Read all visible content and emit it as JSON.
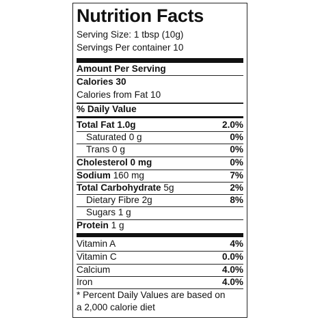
{
  "header": {
    "title": "Nutrition Facts",
    "serving_size": "Serving Size: 1 tbsp (10g)",
    "servings_per_container": "Servings Per container 10"
  },
  "amount_per_serving": "Amount Per Serving",
  "calories": "Calories 30",
  "calories_from_fat": "Calories from Fat 10",
  "daily_value_header": "% Daily Value",
  "nutrients": [
    {
      "name": "Total Fat 1.0g",
      "percent": "2.0%"
    },
    {
      "name": "Saturated 0 g",
      "percent": "0%"
    },
    {
      "name": "Trans 0 g",
      "percent": "0%"
    },
    {
      "name": "Cholesterol 0 mg",
      "percent": "0%"
    },
    {
      "name": "Sodium",
      "amount": "160 mg",
      "percent": "7%"
    },
    {
      "name": "Total Carbohydrate",
      "amount": "5g",
      "percent": "2%"
    },
    {
      "name": "Dietary Fibre 2g",
      "percent": "8%"
    },
    {
      "name": "Sugars 1 g"
    },
    {
      "name": "Protein",
      "amount": "1 g"
    }
  ],
  "vitamins": [
    {
      "name": "Vitamin A",
      "percent": "4%"
    },
    {
      "name": "Vitamin C",
      "percent": "0.0%"
    },
    {
      "name": "Calcium",
      "percent": "4.0%"
    },
    {
      "name": "Iron",
      "percent": "4.0%"
    }
  ],
  "footnote": [
    "* Percent Daily Values are based on",
    "a 2,000 calorie diet"
  ]
}
